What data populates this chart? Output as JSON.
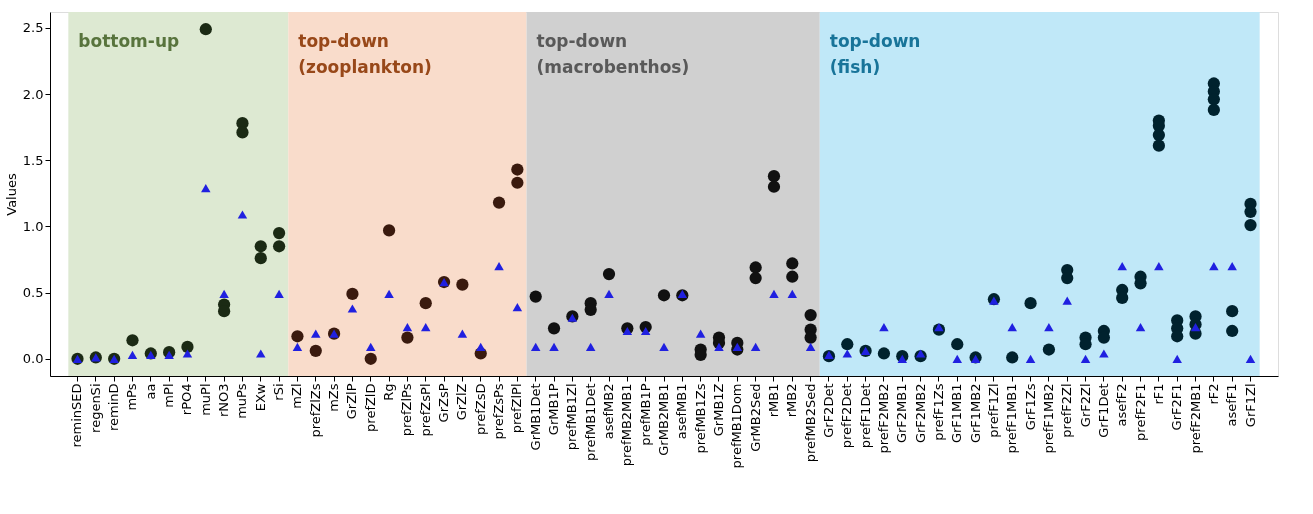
{
  "chart_data": {
    "type": "scatter",
    "ylabel": "Values",
    "categories": [
      "reminSED",
      "regenSi",
      "reminD",
      "mPs",
      "aa",
      "mPl",
      "rPO4",
      "muPl",
      "rNO3",
      "muPs",
      "EXw",
      "rSi",
      "mZl",
      "prefZlZs",
      "mZs",
      "GrZlP",
      "prefZlD",
      "Rg",
      "prefZlPs",
      "prefZsPl",
      "GrZsP",
      "GrZlZ",
      "prefZsD",
      "prefZsPs",
      "prefZlPl",
      "GrMB1Det",
      "GrMB1P",
      "prefMB1Zl",
      "prefMB1Det",
      "asefMB2",
      "prefMB2MB1",
      "prefMB1P",
      "GrMB2MB1",
      "asefMB1",
      "prefMB1Zs",
      "GrMB1Z",
      "prefMB1Dom",
      "GrMB2Sed",
      "rMB1",
      "rMB2",
      "prefMB2Sed",
      "GrF2Det",
      "prefF2Det",
      "prefF1Det",
      "prefF2MB2",
      "GrF2MB1",
      "GrF2MB2",
      "prefF1Zs",
      "GrF1MB1",
      "GrF1MB2",
      "prefF1Zl",
      "prefF1MB1",
      "GrF1Zs",
      "prefF1MB2",
      "prefF2Zl",
      "GrF2Zl",
      "GrF1Det",
      "asefF2",
      "prefF2F1",
      "rF1",
      "GrF2F1",
      "prefF2MB1",
      "rF2",
      "asefF1",
      "GrF1Zl"
    ],
    "series": [
      {
        "color": "#1b2a14",
        "marker": "circle",
        "x": [
          "reminSED",
          "regenSi",
          "reminD",
          "mPs",
          "aa",
          "mPl",
          "rPO4",
          "muPl",
          "rNO3",
          "rNO3",
          "muPs",
          "muPs",
          "EXw",
          "EXw",
          "rSi",
          "rSi"
        ],
        "values": [
          0.0,
          0.01,
          0.0,
          0.14,
          0.04,
          0.05,
          0.09,
          2.49,
          0.41,
          0.36,
          1.78,
          1.71,
          0.85,
          0.76,
          0.95,
          0.85
        ]
      },
      {
        "color": "#3a1a0e",
        "marker": "circle",
        "x": [
          "mZl",
          "prefZlZs",
          "mZs",
          "GrZlP",
          "prefZlD",
          "Rg",
          "prefZlPs",
          "prefZsPl",
          "GrZsP",
          "GrZlZ",
          "prefZsD",
          "prefZsPs",
          "prefZlPl",
          "prefZlPl"
        ],
        "values": [
          0.17,
          0.06,
          0.19,
          0.49,
          0.0,
          0.97,
          0.16,
          0.42,
          0.58,
          0.56,
          0.04,
          1.18,
          1.43,
          1.33
        ]
      },
      {
        "color": "#111111",
        "marker": "circle",
        "x": [
          "GrMB1Det",
          "GrMB1P",
          "prefMB1Zl",
          "prefMB1Det",
          "prefMB1Det",
          "asefMB2",
          "prefMB2MB1",
          "prefMB1P",
          "GrMB2MB1",
          "asefMB1",
          "prefMB1Zs",
          "prefMB1Zs",
          "GrMB1Z",
          "GrMB1Z",
          "prefMB1Dom",
          "prefMB1Dom",
          "GrMB2Sed",
          "GrMB2Sed",
          "rMB1",
          "rMB1",
          "rMB2",
          "rMB2",
          "prefMB2Sed",
          "prefMB2Sed",
          "prefMB2Sed"
        ],
        "values": [
          0.47,
          0.23,
          0.32,
          0.42,
          0.37,
          0.64,
          0.23,
          0.24,
          0.48,
          0.48,
          0.07,
          0.03,
          0.16,
          0.12,
          0.12,
          0.07,
          0.69,
          0.61,
          1.38,
          1.3,
          0.72,
          0.62,
          0.33,
          0.22,
          0.16
        ]
      },
      {
        "color": "#00222e",
        "marker": "circle",
        "x": [
          "GrF2Det",
          "prefF2Det",
          "prefF1Det",
          "prefF2MB2",
          "GrF2MB1",
          "GrF2MB2",
          "prefF1Zs",
          "GrF1MB1",
          "GrF1MB2",
          "prefF1Zl",
          "prefF1MB1",
          "GrF1Zs",
          "prefF1MB2",
          "prefF2Zl",
          "prefF2Zl",
          "GrF2Zl",
          "GrF2Zl",
          "GrF1Det",
          "GrF1Det",
          "asefF2",
          "asefF2",
          "prefF2F1",
          "prefF2F1",
          "rF1",
          "rF1",
          "rF1",
          "rF1",
          "GrF2F1",
          "GrF2F1",
          "GrF2F1",
          "prefF2MB1",
          "prefF2MB1",
          "prefF2MB1",
          "rF2",
          "rF2",
          "rF2",
          "rF2",
          "asefF1",
          "asefF1",
          "GrF1Zl",
          "GrF1Zl",
          "GrF1Zl"
        ],
        "values": [
          0.02,
          0.11,
          0.06,
          0.04,
          0.02,
          0.02,
          0.22,
          0.11,
          0.01,
          0.45,
          0.01,
          0.42,
          0.07,
          0.67,
          0.61,
          0.16,
          0.11,
          0.21,
          0.16,
          0.52,
          0.46,
          0.62,
          0.57,
          1.8,
          1.76,
          1.69,
          1.61,
          0.29,
          0.23,
          0.17,
          0.32,
          0.26,
          0.19,
          2.08,
          2.02,
          1.96,
          1.88,
          0.36,
          0.21,
          1.17,
          1.11,
          1.01
        ]
      },
      {
        "color": "#2020e0",
        "marker": "triangle",
        "values": [
          0.0,
          0.01,
          0.0,
          0.03,
          0.03,
          0.03,
          0.04,
          1.29,
          0.49,
          1.09,
          0.04,
          0.49,
          0.09,
          0.19,
          0.19,
          0.38,
          0.09,
          0.49,
          0.24,
          0.24,
          0.58,
          0.19,
          0.09,
          0.7,
          0.39,
          0.09,
          0.09,
          0.31,
          0.09,
          0.49,
          0.21,
          0.21,
          0.09,
          0.49,
          0.19,
          0.09,
          0.09,
          0.09,
          0.49,
          0.49,
          0.09,
          0.03,
          0.04,
          0.06,
          0.24,
          0.0,
          0.04,
          0.24,
          0.0,
          0.0,
          0.44,
          0.24,
          0.0,
          0.24,
          0.44,
          0.0,
          0.04,
          0.7,
          0.24,
          0.7,
          0.0,
          0.24,
          0.7,
          0.7,
          0.0
        ]
      }
    ],
    "bands": [
      {
        "axis": "x",
        "from": "reminSED",
        "to": "rSi",
        "label": "bottom-up",
        "color": "#dde9d2"
      },
      {
        "axis": "x",
        "from": "mZl",
        "to": "prefZlPl",
        "label": "top-down\n(zooplankton)",
        "color": "#f9dccb"
      },
      {
        "axis": "x",
        "from": "GrMB1Det",
        "to": "prefMB2Sed",
        "label": "top-down\n(macrobenthos)",
        "color": "#d0d0d0"
      },
      {
        "axis": "x",
        "from": "GrF2Det",
        "to": "GrF1Zl",
        "label": "top-down\n(fish)",
        "color": "#c0e8f8"
      }
    ],
    "ylim": [
      -0.13,
      2.62
    ],
    "yticks": [
      {
        "value": 0,
        "label": "0.0"
      },
      0.5,
      {
        "value": 1,
        "label": "1.0"
      },
      1.5,
      {
        "value": 2,
        "label": "2.0"
      },
      2.5
    ],
    "grid": false
  }
}
